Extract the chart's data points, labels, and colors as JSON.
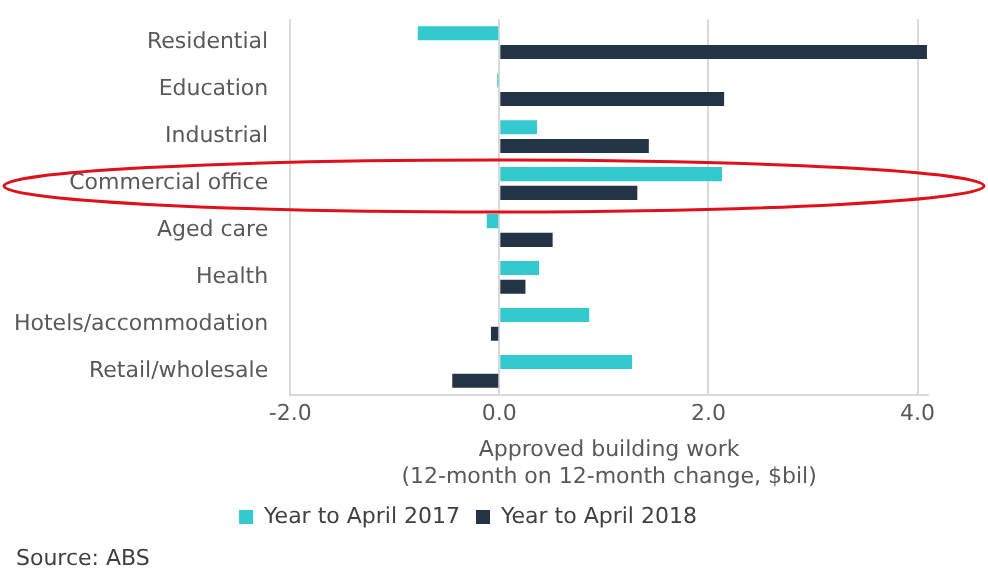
{
  "chart_data": {
    "type": "bar",
    "orientation": "horizontal",
    "xlabel": [
      "Approved building work",
      "(12-month on 12-month change, $bil)"
    ],
    "categories": [
      "Residential",
      "Education",
      "Industrial",
      "Commercial office",
      "Aged care",
      "Health",
      "Hotels/accommodation",
      "Retail/wholesale"
    ],
    "series": [
      {
        "name": "Year to April 2017",
        "color": "#33c9cf",
        "values": [
          -0.78,
          -0.02,
          0.36,
          2.13,
          -0.12,
          0.38,
          0.86,
          1.27
        ]
      },
      {
        "name": "Year to April 2018",
        "color": "#243447",
        "values": [
          4.09,
          2.15,
          1.43,
          1.32,
          0.51,
          0.25,
          -0.08,
          -0.45
        ]
      }
    ],
    "xlim": [
      -2,
      4.1
    ],
    "xticks": [
      {
        "value": -2,
        "label": "-2.0"
      },
      {
        "value": 0,
        "label": "0.0"
      },
      {
        "value": 2,
        "label": "2.0"
      },
      {
        "value": 4,
        "label": "4.0"
      }
    ],
    "grid": "x",
    "legend": "bottom",
    "annotations": [
      "Source: ABS"
    ]
  }
}
